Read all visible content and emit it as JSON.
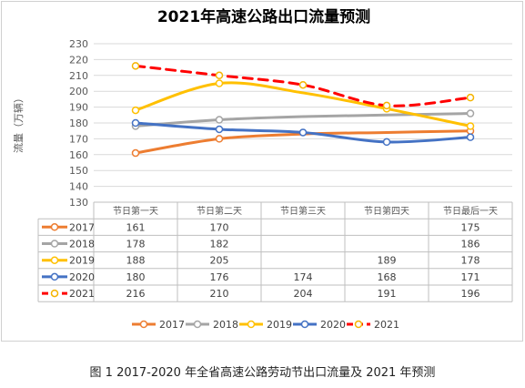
{
  "chart_data": {
    "type": "line",
    "title": "2021年高速公路出口流量预测",
    "ylabel": "流量（万辆）",
    "xlabel": "",
    "ylim": [
      130,
      230
    ],
    "ytick_step": 10,
    "categories": [
      "节日第一天",
      "节日第二天",
      "节日第三天",
      "节日第四天",
      "节日最后一天"
    ],
    "grid": true,
    "legend_position": "bottom",
    "series": [
      {
        "name": "2017",
        "color": "#ED7D31",
        "dashed": false,
        "values": [
          161,
          170,
          173,
          174,
          175
        ],
        "labels": [
          "161",
          "170",
          "",
          "",
          "175"
        ]
      },
      {
        "name": "2018",
        "color": "#A5A5A5",
        "dashed": false,
        "values": [
          178,
          182,
          184,
          185,
          186
        ],
        "labels": [
          "178",
          "182",
          "",
          "",
          "186"
        ]
      },
      {
        "name": "2019",
        "color": "#FFC000",
        "dashed": false,
        "values": [
          188,
          205,
          199,
          189,
          178
        ],
        "labels": [
          "188",
          "205",
          "",
          "189",
          "178"
        ]
      },
      {
        "name": "2020",
        "color": "#4472C4",
        "dashed": false,
        "values": [
          180,
          176,
          174,
          168,
          171
        ],
        "labels": [
          "180",
          "176",
          "174",
          "168",
          "171"
        ]
      },
      {
        "name": "2021",
        "color": "#FF0000",
        "dashed": true,
        "values": [
          216,
          210,
          204,
          191,
          196
        ],
        "labels": [
          "216",
          "210",
          "204",
          "191",
          "196"
        ]
      }
    ]
  },
  "caption": "图 1   2017-2020 年全省高速公路劳动节出口流量及 2021 年预测"
}
